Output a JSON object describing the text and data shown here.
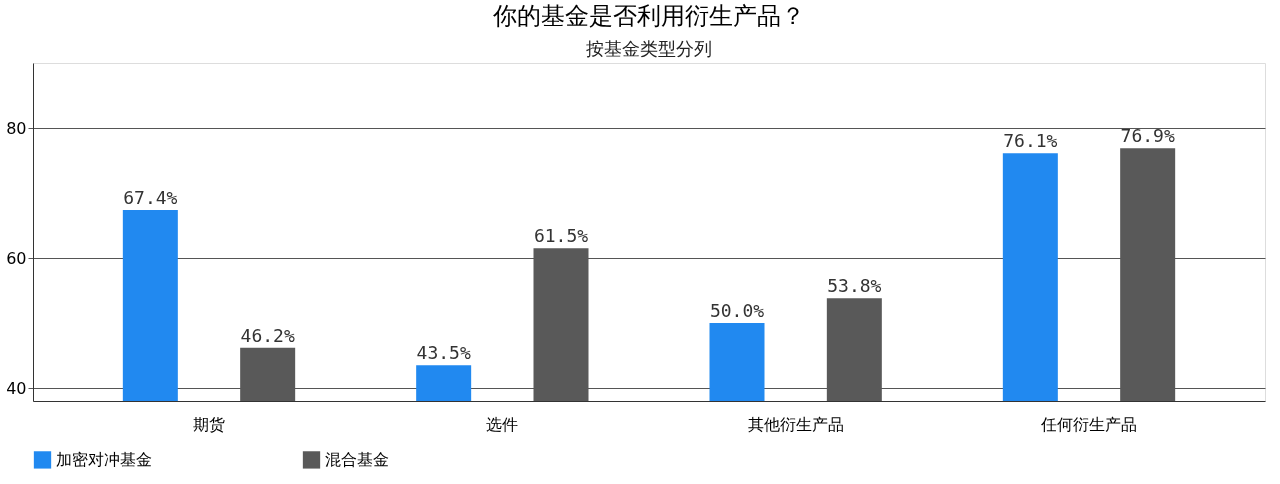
{
  "chart_data": {
    "type": "bar",
    "title": "你的基金是否利用衍生产品？",
    "subtitle": "按基金类型分列",
    "categories": [
      "期货",
      "选件",
      "其他衍生产品",
      "任何衍生产品"
    ],
    "series": [
      {
        "name": "加密对冲基金",
        "color": "#2189f0",
        "values": [
          67.4,
          43.5,
          50.0,
          76.1
        ],
        "value_labels": [
          "67.4%",
          "43.5%",
          "50.0%",
          "76.1%"
        ]
      },
      {
        "name": "混合基金",
        "color": "#595959",
        "values": [
          46.2,
          61.5,
          53.8,
          76.9
        ],
        "value_labels": [
          "46.2%",
          "61.5%",
          "53.8%",
          "76.9%"
        ]
      }
    ],
    "ylim": [
      38,
      90
    ],
    "yticks": [
      40,
      60,
      80
    ],
    "grid": "y",
    "legend": "bottom"
  }
}
